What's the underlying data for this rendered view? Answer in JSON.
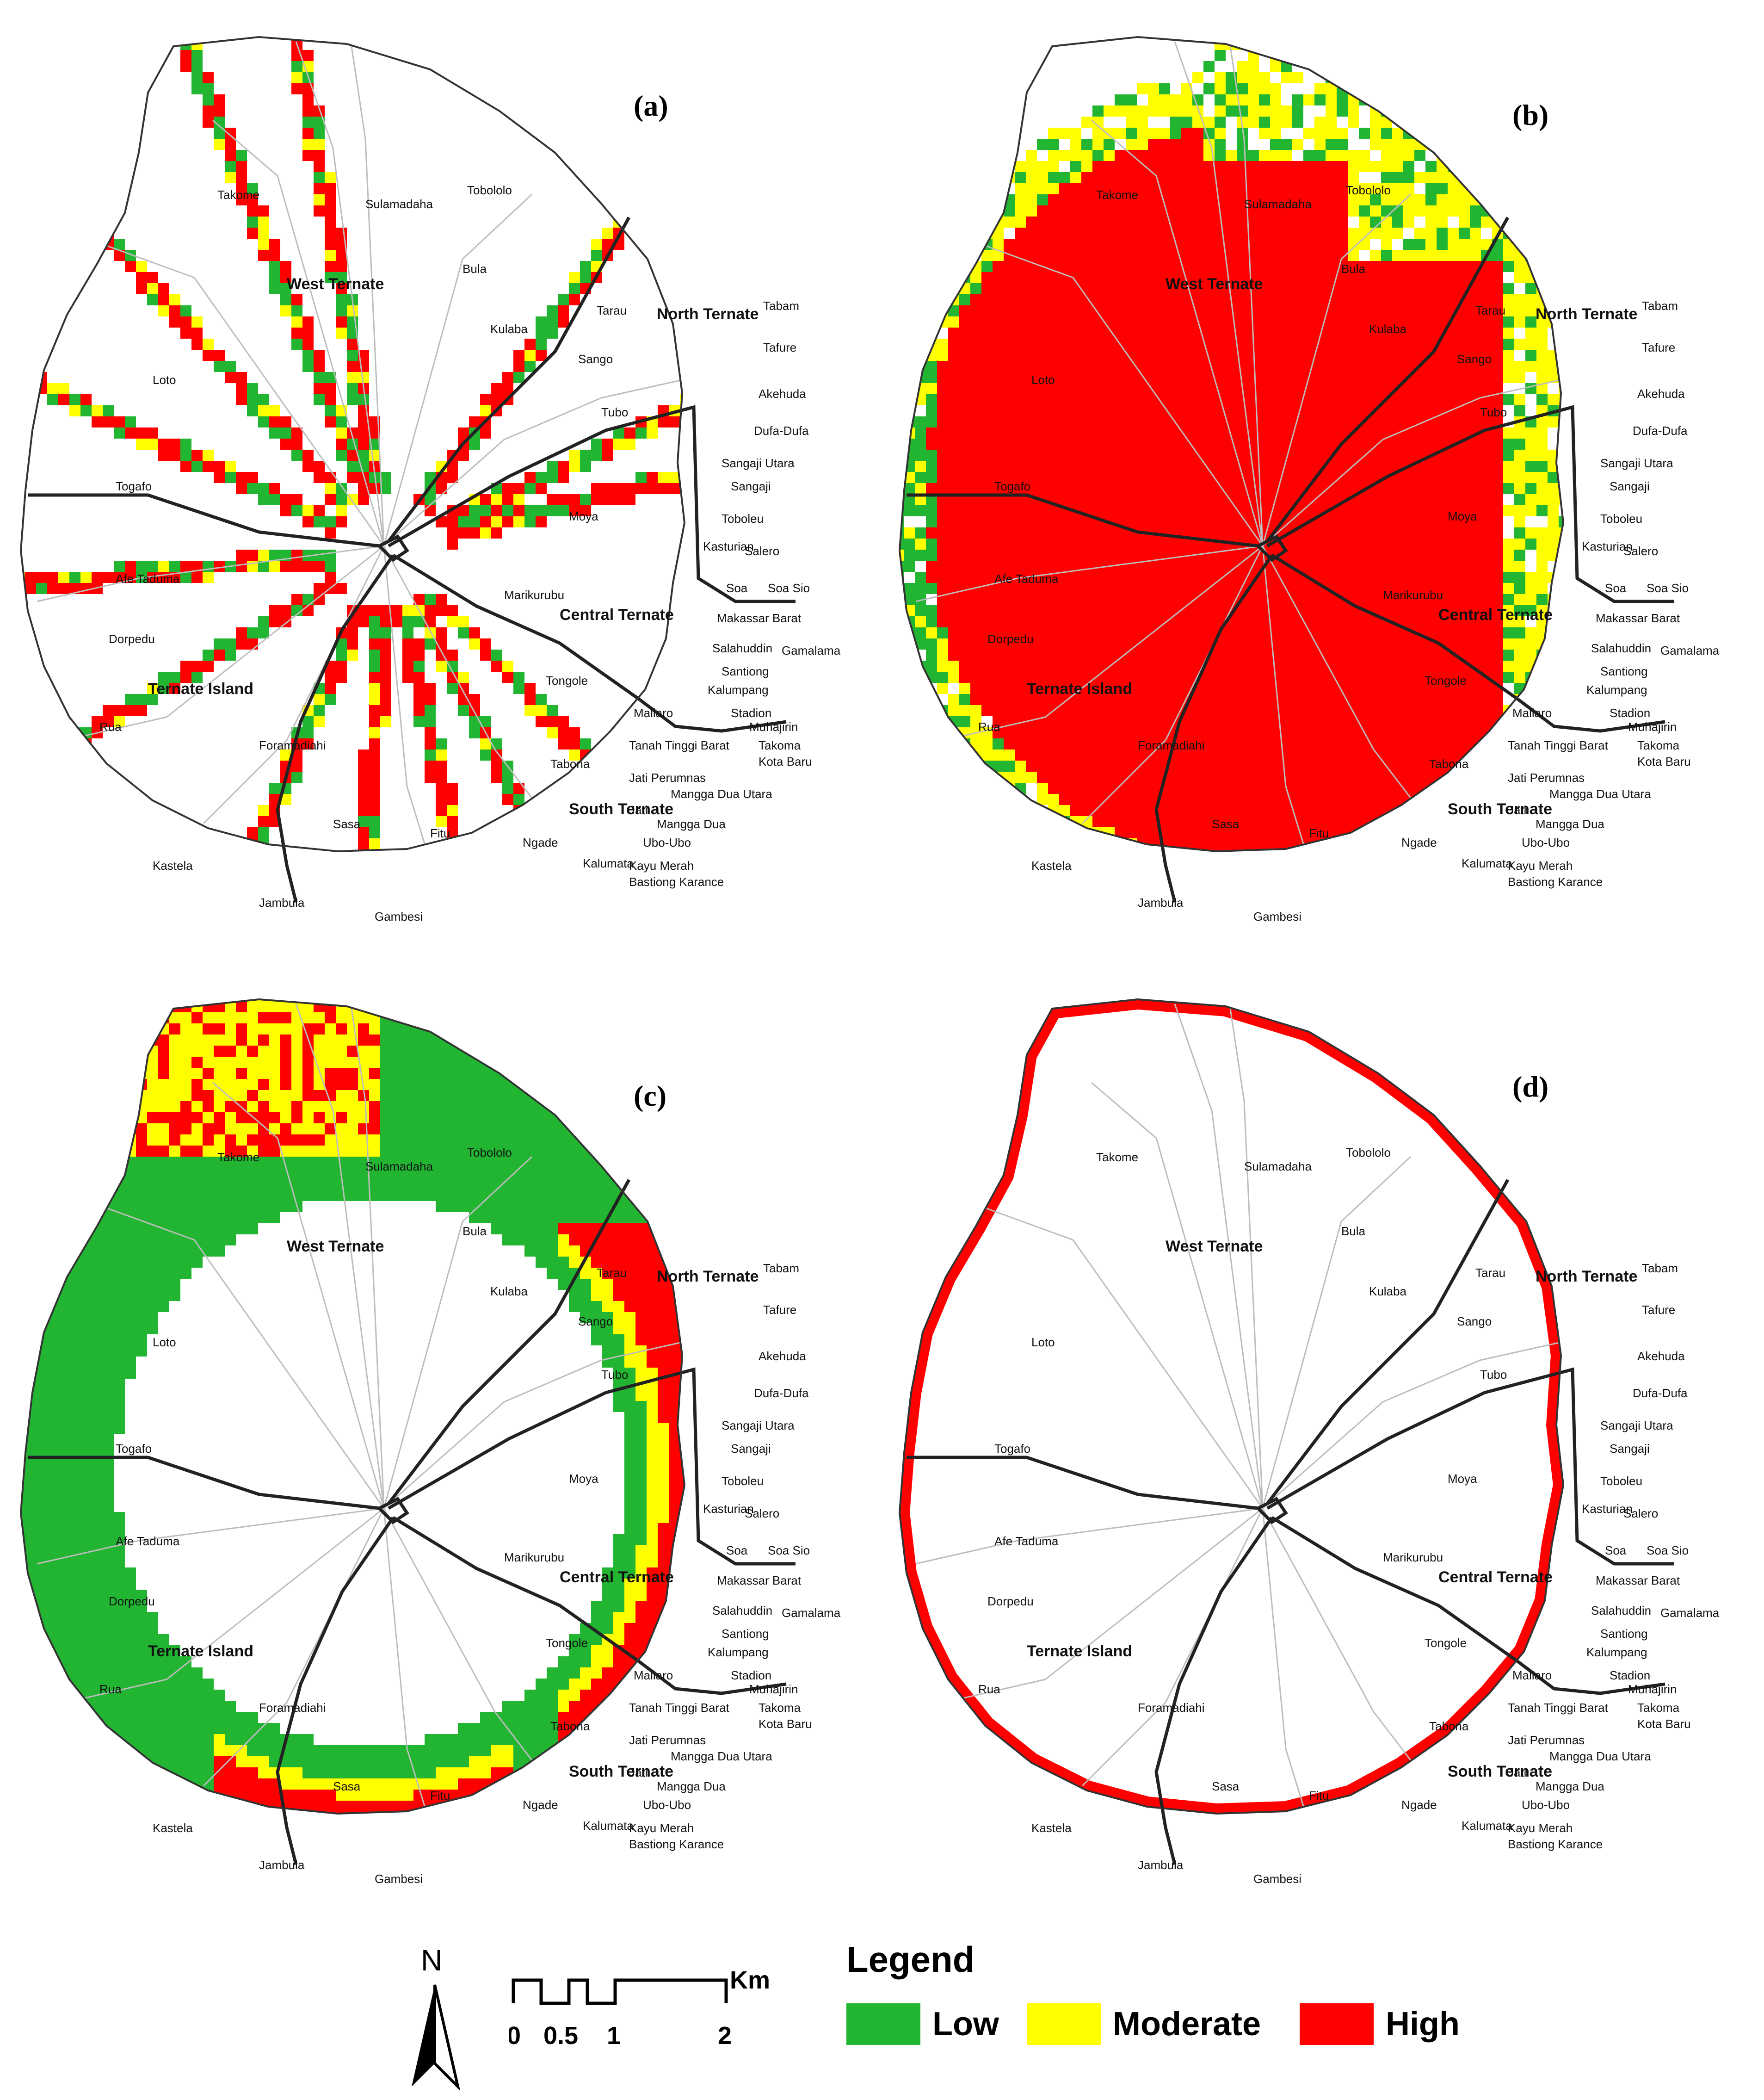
{
  "panels": [
    {
      "label": "(a)",
      "layer": "a"
    },
    {
      "label": "(b)",
      "layer": "b"
    },
    {
      "label": "(c)",
      "layer": "c"
    },
    {
      "label": "(d)",
      "layer": "d"
    }
  ],
  "districts": [
    "West Ternate",
    "North Ternate",
    "Central Ternate",
    "South Ternate",
    "Ternate Island"
  ],
  "villages": [
    "Takome",
    "Sulamadaha",
    "Tobololo",
    "Bula",
    "Kulaba",
    "Tarau",
    "Sango",
    "Tubo",
    "Tabam",
    "Tafure",
    "Akehuda",
    "Dufa-Dufa",
    "Sangaji Utara",
    "Sangaji",
    "Toboleu",
    "Kasturian",
    "Salero",
    "Soa",
    "Soa Sio",
    "Moya",
    "Marikurubu",
    "Makassar Barat",
    "Salahuddin",
    "Santiong",
    "Kalumpang",
    "Gamalama",
    "Stadion",
    "Muhajirin",
    "Maliaro",
    "Takoma",
    "Kota Baru",
    "Tanah Tinggi Barat",
    "Jati Perumnas",
    "Mangga Dua Utara",
    "Jati",
    "Mangga Dua",
    "Ubo-Ubo",
    "Kayu Merah",
    "Bastiong Karance",
    "Kalumata",
    "Ngade",
    "Tabona",
    "Tongole",
    "Fitu",
    "Sasa",
    "Gambesi",
    "Jambula",
    "Kastela",
    "Foramadiahi",
    "Rua",
    "Dorpedu",
    "Afe Taduma",
    "Togafo",
    "Loto"
  ],
  "legend": {
    "title": "Legend",
    "items": [
      {
        "label": "Low",
        "color": "#22b532"
      },
      {
        "label": "Moderate",
        "color": "#ffff00"
      },
      {
        "label": "High",
        "color": "#ff0000"
      }
    ]
  },
  "north_arrow": {
    "letter": "N"
  },
  "scale_bar": {
    "ticks": [
      "0",
      "0.5",
      "1",
      "2"
    ],
    "unit": "Km"
  },
  "colors": {
    "low": "#22b532",
    "moderate": "#ffff00",
    "high": "#ff0000",
    "boundary": "#222222",
    "road": "#bdbdbd"
  }
}
